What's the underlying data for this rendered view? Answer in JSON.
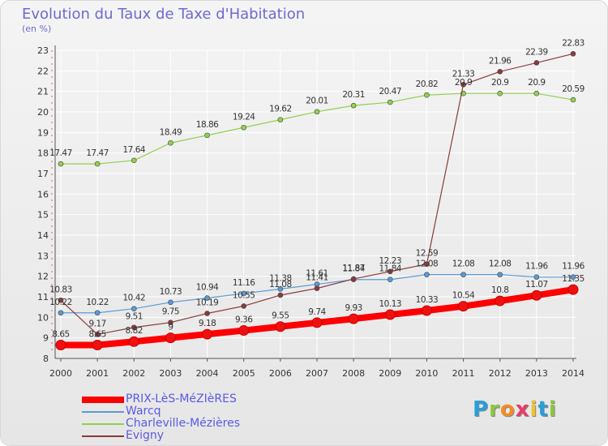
{
  "header": {
    "title": "Evolution du Taux de Taxe d'Habitation",
    "unit": "(en %)"
  },
  "logo": {
    "text": "Proxiti",
    "letters": [
      "P",
      "r",
      "o",
      "x",
      "i",
      "t",
      "i"
    ],
    "colors": [
      "#2a9fd8",
      "#8cc63f",
      "#f28c28",
      "#e83c6a",
      "#f2c12e",
      "#2a9fd8",
      "#8cc63f"
    ]
  },
  "chart_data": {
    "type": "line",
    "title": "Evolution du Taux de Taxe d'Habitation",
    "ylabel": "(en %)",
    "xlabel": "",
    "ylim": [
      8,
      23
    ],
    "yticks": [
      8,
      9,
      10,
      11,
      12,
      13,
      14,
      15,
      16,
      17,
      18,
      19,
      20,
      21,
      22,
      23
    ],
    "grid": true,
    "legend_position": "bottom-left",
    "categories": [
      "2000",
      "2001",
      "2002",
      "2003",
      "2004",
      "2005",
      "2006",
      "2007",
      "2008",
      "2009",
      "2010",
      "2011",
      "2012",
      "2013",
      "2014"
    ],
    "series": [
      {
        "name": "PRIX-LèS-MéZIèRES",
        "color": "#ff0000",
        "values": [
          8.65,
          8.65,
          8.82,
          9.0,
          9.18,
          9.36,
          9.55,
          9.74,
          9.93,
          10.13,
          10.33,
          10.54,
          10.8,
          11.07,
          11.35
        ],
        "labels": [
          "8.65",
          "8.65",
          "8.82",
          "9",
          "9.18",
          "9.36",
          "9.55",
          "9.74",
          "9.93",
          "10.13",
          "10.33",
          "10.54",
          "10.8",
          "11.07",
          "11.35"
        ]
      },
      {
        "name": "Warcq",
        "color": "#5b9bd5",
        "values": [
          10.22,
          10.22,
          10.42,
          10.73,
          10.94,
          11.16,
          11.38,
          11.61,
          11.84,
          11.84,
          12.08,
          12.08,
          12.08,
          11.96,
          11.96
        ],
        "labels": [
          "10.22",
          "10.22",
          "10.42",
          "10.73",
          "10.94",
          "11.16",
          "11.38",
          "11.61",
          "11.84",
          "11.84",
          "12.08",
          "12.08",
          "12.08",
          "11.96",
          "11.96"
        ]
      },
      {
        "name": "Charleville-Mézières",
        "color": "#92d050",
        "values": [
          17.47,
          17.47,
          17.64,
          18.49,
          18.86,
          19.24,
          19.62,
          20.01,
          20.31,
          20.47,
          20.82,
          20.9,
          20.9,
          20.9,
          20.59
        ],
        "labels": [
          "17.47",
          "17.47",
          "17.64",
          "18.49",
          "18.86",
          "19.24",
          "19.62",
          "20.01",
          "20.31",
          "20.47",
          "20.82",
          "20.9",
          "20.9",
          "20.9",
          "20.59"
        ]
      },
      {
        "name": "Evigny",
        "color": "#8b3a3a",
        "values": [
          10.83,
          9.17,
          9.51,
          9.75,
          10.19,
          10.55,
          11.08,
          11.41,
          11.87,
          12.23,
          12.59,
          21.33,
          21.96,
          22.39,
          22.83
        ],
        "labels": [
          "10.83",
          "9.17",
          "9.51",
          "9.75",
          "10.19",
          "10.55",
          "11.08",
          "11.41",
          "11.87",
          "12.23",
          "12.59",
          "21.33",
          "21.96",
          "22.39",
          "22.83"
        ]
      }
    ]
  }
}
